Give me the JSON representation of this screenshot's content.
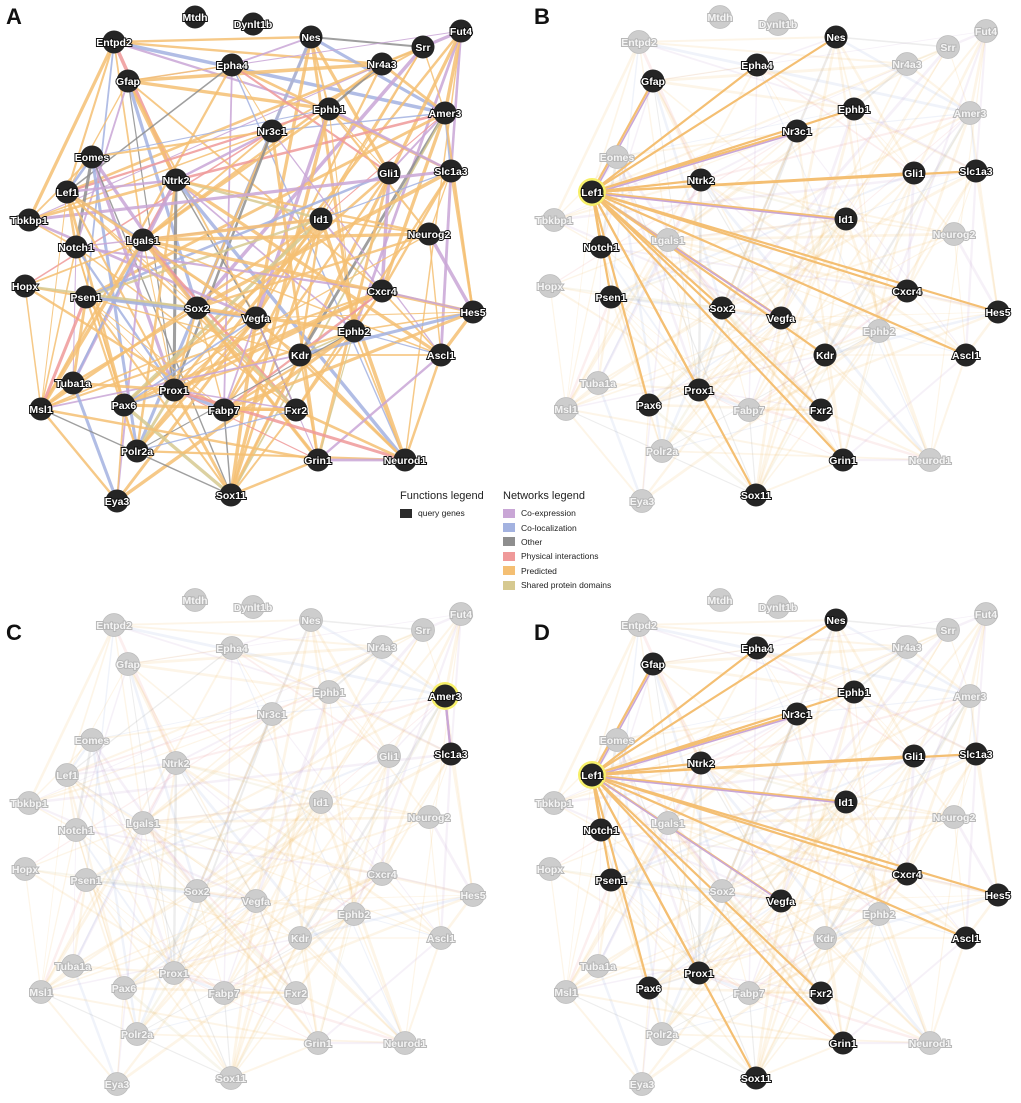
{
  "panels": [
    {
      "letter": "A",
      "mode": "full"
    },
    {
      "letter": "B",
      "mode": "hub",
      "hub": "Lef1",
      "partners": [
        "Gfap",
        "Epha4",
        "Nes",
        "Ephb1",
        "Nr3c1",
        "Ntrk2",
        "Gli1",
        "Slc1a3",
        "Id1",
        "Notch1",
        "Psen1",
        "Sox2",
        "Vegfa",
        "Kdr",
        "Cxcr4",
        "Hes5",
        "Ascl1",
        "Pax6",
        "Prox1",
        "Fxr2",
        "Grin1",
        "Sox11"
      ]
    },
    {
      "letter": "C",
      "mode": "hub",
      "hub": "Amer3",
      "partners": [
        "Slc1a3"
      ]
    },
    {
      "letter": "D",
      "mode": "hub",
      "hub": "Lef1",
      "partners": [
        "Gfap",
        "Epha4",
        "Nes",
        "Ephb1",
        "Nr3c1",
        "Ntrk2",
        "Gli1",
        "Slc1a3",
        "Id1",
        "Notch1",
        "Psen1",
        "Vegfa",
        "Cxcr4",
        "Hes5",
        "Ascl1",
        "Pax6",
        "Prox1",
        "Fxr2",
        "Grin1",
        "Sox11"
      ]
    }
  ],
  "genes": [
    "Mtdh",
    "Dynlt1b",
    "Entpd2",
    "Nes",
    "Fut4",
    "Srr",
    "Nr4a3",
    "Gfap",
    "Epha4",
    "Amer3",
    "Ephb1",
    "Nr3c1",
    "Eomes",
    "Ntrk2",
    "Gli1",
    "Slc1a3",
    "Lef1",
    "Id1",
    "Tbkbp1",
    "Notch1",
    "Lgals1",
    "Neurog2",
    "Hopx",
    "Psen1",
    "Cxcr4",
    "Hes5",
    "Sox2",
    "Vegfa",
    "Ephb2",
    "Kdr",
    "Ascl1",
    "Tuba1a",
    "Prox1",
    "Pax6",
    "Msl1",
    "Fabp7",
    "Fxr2",
    "Polr2a",
    "Grin1",
    "Neurod1",
    "Eya3",
    "Sox11"
  ],
  "functions_legend": {
    "title": "Functions legend",
    "items": [
      {
        "label": "query genes",
        "color": "#2b2b2b"
      }
    ]
  },
  "networks_legend": {
    "title": "Networks legend",
    "items": [
      {
        "label": "Co-expression",
        "color": "#c9a6d6"
      },
      {
        "label": "Co-localization",
        "color": "#a3b2e0"
      },
      {
        "label": "Other",
        "color": "#8e8e8e"
      },
      {
        "label": "Physical interactions",
        "color": "#ef9999"
      },
      {
        "label": "Predicted",
        "color": "#f4bf73"
      },
      {
        "label": "Shared protein domains",
        "color": "#d6c990"
      }
    ]
  },
  "styles": {
    "node_fill": "#252525",
    "faded_node_fill": "#cdcdcd",
    "hub_highlight": "#f7f06a",
    "node_label_color": "#ffffff",
    "faded_label_color": "#f4f4f4"
  }
}
